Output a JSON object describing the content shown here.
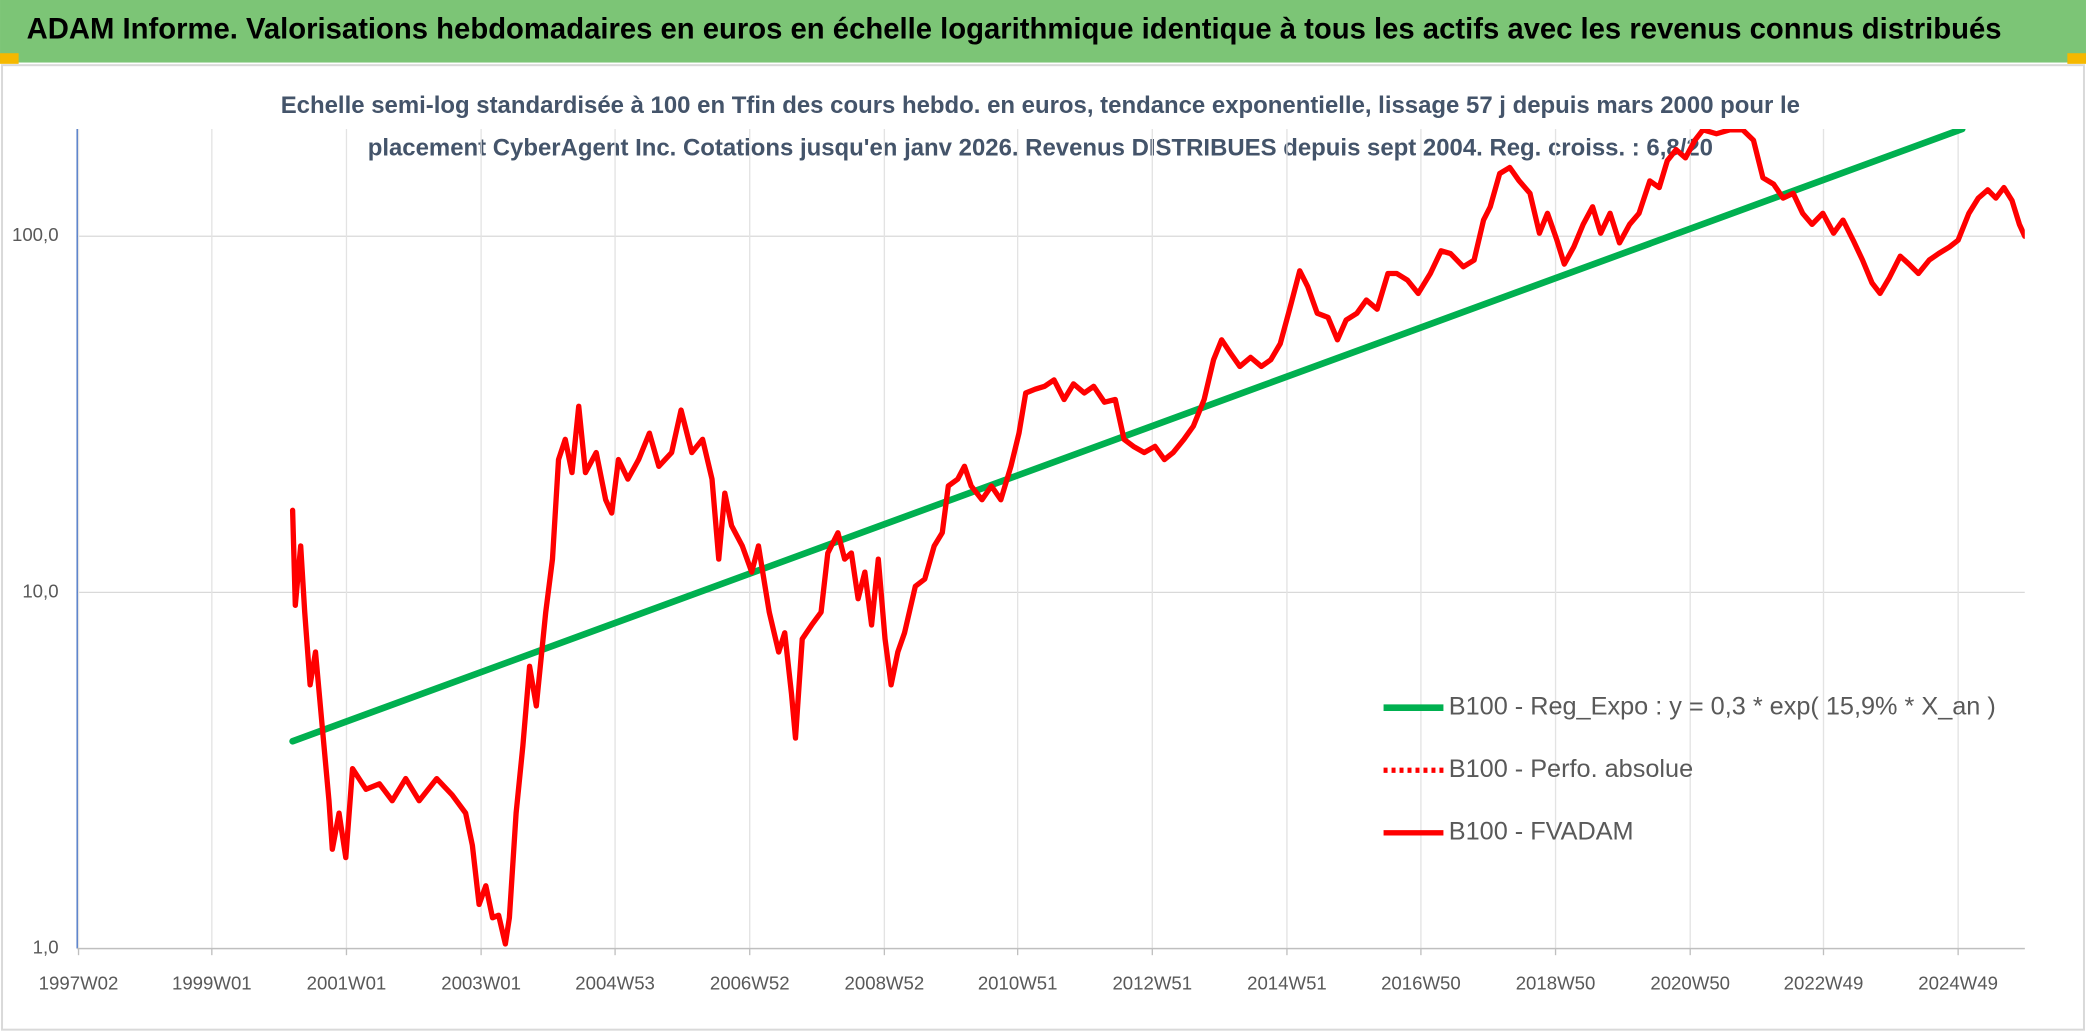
{
  "chart_data": {
    "type": "line",
    "title": "ADAM Informe. Valorisations hebdomadaires en euros en échelle logarithmique identique à tous les actifs avec les revenus connus distribués",
    "subtitle": [
      "Echelle semi-log standardisée à 100 en Tfin des cours hebdo. en euros, tendance exponentielle, lissage 57 j depuis mars 2000 pour le",
      "placement CyberAgent Inc. Cotations jusqu'en janv 2026. Revenus DISTRIBUES depuis sept 2004. Reg. croiss. : 6,8/20"
    ],
    "ylog": true,
    "grid": true,
    "legend": "right",
    "xlim": [
      1997.0,
      2025.93
    ],
    "ylim": [
      1,
      200
    ],
    "yticks": [
      {
        "value": 1,
        "label": "1,0"
      },
      {
        "value": 10,
        "label": "10,0"
      },
      {
        "value": 100,
        "label": "100,0"
      }
    ],
    "xticks": [
      {
        "value": 1997.02,
        "label": "1997W02"
      },
      {
        "value": 1999.0,
        "label": "1999W01"
      },
      {
        "value": 2001.0,
        "label": "2001W01"
      },
      {
        "value": 2003.0,
        "label": "2003W01"
      },
      {
        "value": 2004.99,
        "label": "2004W53"
      },
      {
        "value": 2006.99,
        "label": "2006W52"
      },
      {
        "value": 2008.99,
        "label": "2008W52"
      },
      {
        "value": 2010.97,
        "label": "2010W51"
      },
      {
        "value": 2012.97,
        "label": "2012W51"
      },
      {
        "value": 2014.97,
        "label": "2014W51"
      },
      {
        "value": 2016.96,
        "label": "2016W50"
      },
      {
        "value": 2018.96,
        "label": "2018W50"
      },
      {
        "value": 2020.96,
        "label": "2020W50"
      },
      {
        "value": 2022.94,
        "label": "2022W49"
      },
      {
        "value": 2024.94,
        "label": "2024W49"
      }
    ],
    "series": [
      {
        "name": "B100 - Reg_Expo : y = 0,3 * exp( 15,9% *  X_an )",
        "color": "#00b050",
        "dash": false,
        "x": [
          2000.2,
          2025.0
        ],
        "values": [
          3.82,
          200
        ]
      },
      {
        "name": "B100 - Perfo. absolue",
        "color": "#ff0000",
        "dash": true,
        "x": [],
        "values": []
      },
      {
        "name": "B100 - FVADAM",
        "color": "#ff0000",
        "dash": false,
        "x": [
          2000.2,
          2000.24,
          2000.32,
          2000.38,
          2000.46,
          2000.54,
          2000.64,
          2000.74,
          2000.79,
          2000.89,
          2000.99,
          2001.09,
          2001.29,
          2001.49,
          2001.68,
          2001.88,
          2002.08,
          2002.34,
          2002.57,
          2002.77,
          2002.87,
          2002.97,
          2003.07,
          2003.17,
          2003.26,
          2003.36,
          2003.42,
          2003.52,
          2003.62,
          2003.72,
          2003.82,
          2003.96,
          2004.06,
          2004.15,
          2004.25,
          2004.35,
          2004.45,
          2004.55,
          2004.71,
          2004.85,
          2004.94,
          2005.04,
          2005.18,
          2005.34,
          2005.5,
          2005.64,
          2005.83,
          2005.97,
          2006.13,
          2006.29,
          2006.43,
          2006.53,
          2006.62,
          2006.72,
          2006.88,
          2007.02,
          2007.12,
          2007.28,
          2007.42,
          2007.51,
          2007.61,
          2007.67,
          2007.77,
          2007.91,
          2008.05,
          2008.15,
          2008.3,
          2008.4,
          2008.5,
          2008.6,
          2008.7,
          2008.8,
          2008.9,
          2009.0,
          2009.09,
          2009.19,
          2009.29,
          2009.45,
          2009.59,
          2009.73,
          2009.85,
          2009.94,
          2010.08,
          2010.18,
          2010.28,
          2010.44,
          2010.58,
          2010.72,
          2010.87,
          2010.99,
          2011.09,
          2011.23,
          2011.37,
          2011.51,
          2011.66,
          2011.8,
          2011.96,
          2012.1,
          2012.26,
          2012.42,
          2012.55,
          2012.69,
          2012.85,
          2013.01,
          2013.15,
          2013.28,
          2013.44,
          2013.58,
          2013.74,
          2013.88,
          2014.0,
          2014.13,
          2014.27,
          2014.43,
          2014.59,
          2014.73,
          2014.87,
          2015.02,
          2015.16,
          2015.28,
          2015.42,
          2015.58,
          2015.72,
          2015.85,
          2016.01,
          2016.15,
          2016.31,
          2016.47,
          2016.6,
          2016.76,
          2016.92,
          2017.1,
          2017.26,
          2017.4,
          2017.59,
          2017.75,
          2017.89,
          2017.99,
          2018.13,
          2018.28,
          2018.42,
          2018.58,
          2018.72,
          2018.84,
          2018.98,
          2019.09,
          2019.23,
          2019.37,
          2019.51,
          2019.63,
          2019.77,
          2019.91,
          2020.06,
          2020.2,
          2020.36,
          2020.5,
          2020.62,
          2020.75,
          2020.89,
          2021.03,
          2021.15,
          2021.35,
          2021.55,
          2021.74,
          2021.9,
          2022.04,
          2022.2,
          2022.34,
          2022.49,
          2022.63,
          2022.77,
          2022.93,
          2023.09,
          2023.23,
          2023.38,
          2023.52,
          2023.66,
          2023.78,
          2023.92,
          2024.08,
          2024.21,
          2024.35,
          2024.51,
          2024.65,
          2024.81,
          2024.94,
          2025.1,
          2025.24,
          2025.38,
          2025.5,
          2025.62,
          2025.74,
          2025.85,
          2025.93
        ],
        "values": [
          17.0,
          9.2,
          13.5,
          8.8,
          5.5,
          6.8,
          4.2,
          2.6,
          1.9,
          2.4,
          1.8,
          3.2,
          2.8,
          2.9,
          2.6,
          3.0,
          2.6,
          3.0,
          2.7,
          2.4,
          1.95,
          1.33,
          1.5,
          1.22,
          1.24,
          1.03,
          1.22,
          2.4,
          3.7,
          6.2,
          4.8,
          8.8,
          12.4,
          23.6,
          26.9,
          21.7,
          33.3,
          21.7,
          24.7,
          18.2,
          16.7,
          23.6,
          20.8,
          23.6,
          28.0,
          22.6,
          24.7,
          32.5,
          24.7,
          26.9,
          20.8,
          12.4,
          19.0,
          15.4,
          13.5,
          11.4,
          13.5,
          8.8,
          6.8,
          7.7,
          5.2,
          3.9,
          7.4,
          8.1,
          8.8,
          12.9,
          14.7,
          12.4,
          12.9,
          9.6,
          11.4,
          8.1,
          12.4,
          7.4,
          5.5,
          6.8,
          7.7,
          10.4,
          10.9,
          13.5,
          14.7,
          19.9,
          20.8,
          22.6,
          19.9,
          18.2,
          19.9,
          18.2,
          22.6,
          28.0,
          36.3,
          37.2,
          37.9,
          39.5,
          34.8,
          38.5,
          36.3,
          37.9,
          34.2,
          34.8,
          26.9,
          25.7,
          24.7,
          25.7,
          23.6,
          24.7,
          26.9,
          29.3,
          34.8,
          45.0,
          51.2,
          47.0,
          43.1,
          45.7,
          43.1,
          45.0,
          49.9,
          63.4,
          80.0,
          72.1,
          60.8,
          59.2,
          51.2,
          58.2,
          60.8,
          66.2,
          62.4,
          78.6,
          78.6,
          75.3,
          69.1,
          78.6,
          91.0,
          89.4,
          82.1,
          85.7,
          111,
          121,
          150,
          156,
          143,
          132,
          102,
          116,
          97.5,
          83.5,
          93.3,
          108,
          121,
          102,
          116,
          95.8,
          108,
          116,
          143,
          137,
          163,
          175,
          166,
          186,
          199,
          194,
          199,
          199,
          186,
          146,
          140,
          128,
          132,
          116,
          108,
          116,
          102,
          111,
          97.5,
          85.7,
          74.0,
          69.1,
          76.6,
          87.9,
          83.5,
          78.6,
          85.7,
          89.4,
          93.3,
          97.5,
          116,
          128,
          135,
          128,
          137,
          126,
          108,
          100
        ]
      }
    ]
  }
}
